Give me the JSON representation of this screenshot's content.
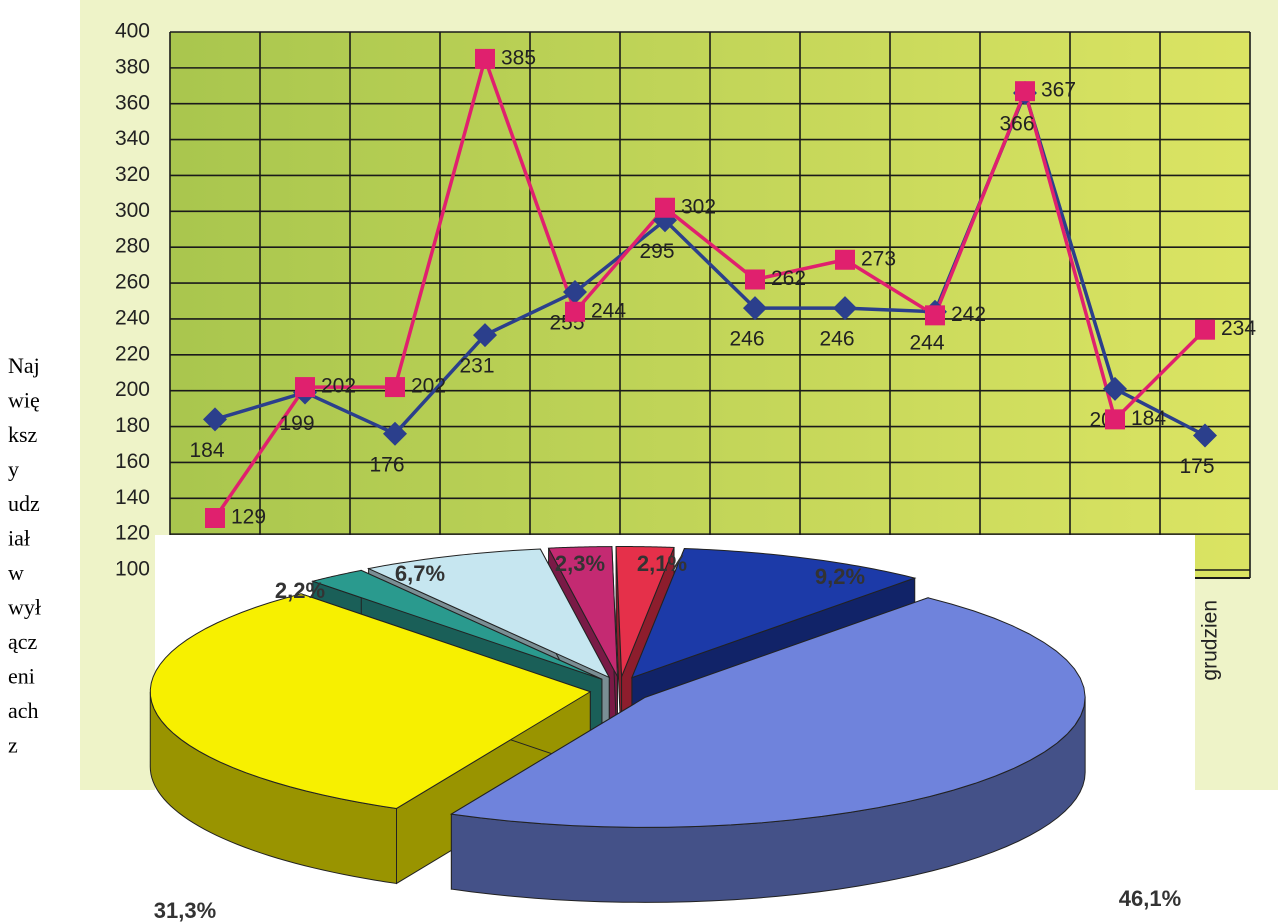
{
  "side_text": [
    "Naj",
    "wię",
    "ksz",
    "y",
    "udz",
    "iał",
    "w",
    "wył",
    "ącz",
    "eni",
    "ach",
    "z"
  ],
  "chart_data": [
    {
      "type": "line",
      "categories": [
        null,
        null,
        null,
        null,
        null,
        null,
        null,
        null,
        null,
        null,
        null,
        "grudzien"
      ],
      "ylim": [
        100,
        400
      ],
      "yticks": [
        100,
        120,
        140,
        160,
        180,
        200,
        220,
        240,
        260,
        280,
        300,
        320,
        340,
        360,
        380,
        400
      ],
      "grid": true,
      "series": [
        {
          "color": "#2b3f8c",
          "marker": "diamond",
          "values": [
            184,
            199,
            176,
            231,
            255,
            295,
            246,
            246,
            244,
            366,
            201,
            175
          ]
        },
        {
          "color": "#e0206e",
          "marker": "square",
          "values": [
            129,
            202,
            202,
            385,
            244,
            302,
            262,
            273,
            242,
            367,
            184,
            234
          ]
        }
      ]
    },
    {
      "type": "pie",
      "values": [
        46.1,
        31.3,
        2.2,
        6.7,
        2.3,
        2.1,
        9.2
      ],
      "value_labels": [
        "46,1%",
        "31,3%",
        "2,2%",
        "6,7%",
        "2,3%",
        "2,1%",
        "9,2%"
      ],
      "colors": [
        "#6f83dc",
        "#f7f000",
        "#2a9a8e",
        "#c6e6f0",
        "#c42a72",
        "#e5304a",
        "#1c3aa8"
      ]
    }
  ]
}
